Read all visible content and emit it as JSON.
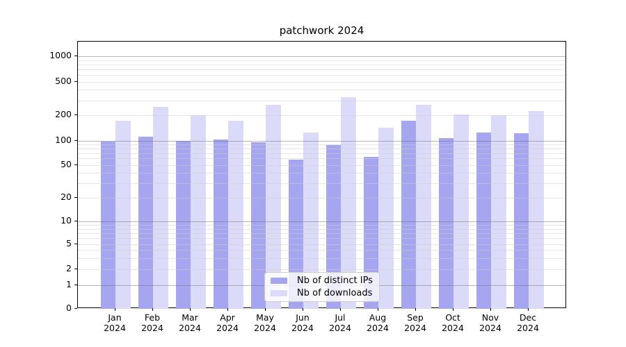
{
  "title": "patchwork 2024",
  "chart_data": {
    "type": "bar",
    "title": "patchwork 2024",
    "categories": [
      "Jan 2024",
      "Feb 2024",
      "Mar 2024",
      "Apr 2024",
      "May 2024",
      "Jun 2024",
      "Jul 2024",
      "Aug 2024",
      "Sep 2024",
      "Oct 2024",
      "Nov 2024",
      "Dec 2024"
    ],
    "x_ticks": [
      {
        "line1": "Jan",
        "line2": "2024"
      },
      {
        "line1": "Feb",
        "line2": "2024"
      },
      {
        "line1": "Mar",
        "line2": "2024"
      },
      {
        "line1": "Apr",
        "line2": "2024"
      },
      {
        "line1": "May",
        "line2": "2024"
      },
      {
        "line1": "Jun",
        "line2": "2024"
      },
      {
        "line1": "Jul",
        "line2": "2024"
      },
      {
        "line1": "Aug",
        "line2": "2024"
      },
      {
        "line1": "Sep",
        "line2": "2024"
      },
      {
        "line1": "Oct",
        "line2": "2024"
      },
      {
        "line1": "Nov",
        "line2": "2024"
      },
      {
        "line1": "Dec",
        "line2": "2024"
      }
    ],
    "series": [
      {
        "name": "Nb of distinct IPs",
        "color": "#a6a6f0",
        "values": [
          97,
          110,
          100,
          103,
          95,
          58,
          88,
          63,
          173,
          107,
          124,
          121
        ]
      },
      {
        "name": "Nb of downloads",
        "color": "#dbdbf9",
        "values": [
          172,
          249,
          199,
          172,
          265,
          125,
          325,
          143,
          267,
          205,
          200,
          222
        ]
      }
    ],
    "yscale": "symlog",
    "ylabel": "",
    "xlabel": "",
    "y_ticks": [
      {
        "label": "1000",
        "value": 1000
      },
      {
        "label": "500",
        "value": 500
      },
      {
        "label": "200",
        "value": 200
      },
      {
        "label": "100",
        "value": 100
      },
      {
        "label": "50",
        "value": 50
      },
      {
        "label": "20",
        "value": 20
      },
      {
        "label": "10",
        "value": 10
      },
      {
        "label": "5",
        "value": 5
      },
      {
        "label": "2",
        "value": 2
      },
      {
        "label": "1",
        "value": 1
      },
      {
        "label": "0",
        "value": 0
      }
    ],
    "ylim": [
      0,
      1500
    ],
    "grid": true,
    "legend_position": "lower center"
  },
  "colors": {
    "distinct_ips_bar": "#a6a6f0",
    "downloads_bar": "#dbdbf9",
    "minor_grid": "#cdcdcd",
    "major_grid": "#6e6e6e",
    "axis": "#000000",
    "legend_border": "#cccccc"
  }
}
